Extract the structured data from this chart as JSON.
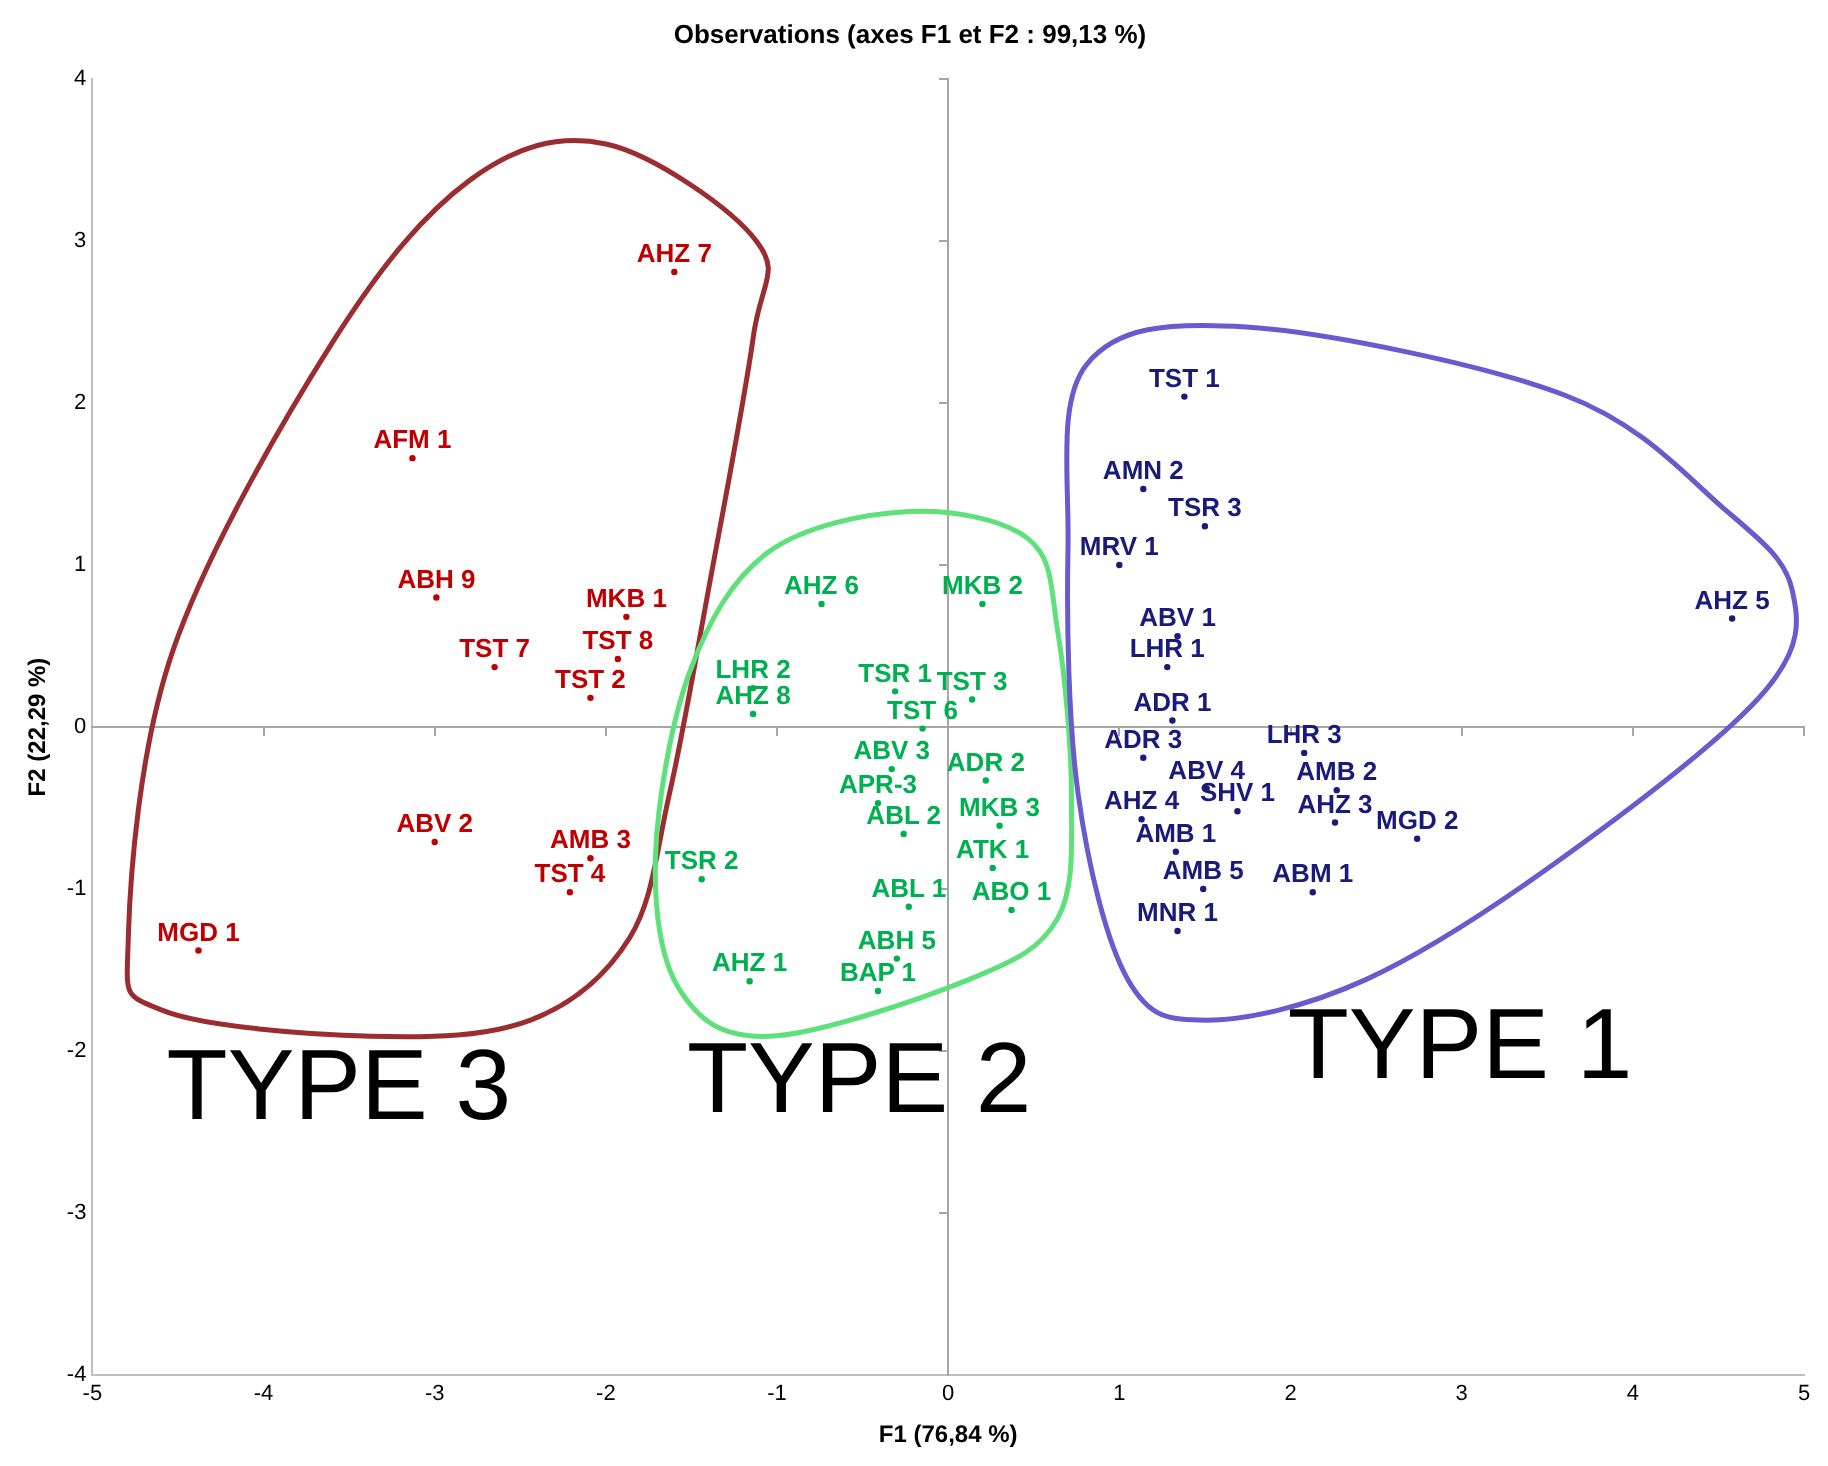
{
  "chart_data": {
    "type": "scatter",
    "title": "Observations (axes F1 et F2 : 99,13 %)",
    "xlabel": "F1 (76,84 %)",
    "ylabel": "F2 (22,29 %)",
    "xlim": [
      -5,
      5
    ],
    "ylim": [
      -4,
      4
    ],
    "xticks": [
      -5,
      -4,
      -3,
      -2,
      -1,
      0,
      1,
      2,
      3,
      4,
      5
    ],
    "yticks": [
      -4,
      -3,
      -2,
      -1,
      0,
      1,
      2,
      3,
      4
    ],
    "marker": "circle",
    "series": [
      {
        "color": "#c00000",
        "x": [
          -1.6,
          -3.13,
          -2.99,
          -1.88,
          -1.93,
          -2.65,
          -2.09,
          -3.0,
          -2.09,
          -2.21,
          -4.38
        ],
        "values": [
          2.81,
          1.66,
          0.8,
          0.68,
          0.42,
          0.37,
          0.18,
          -0.71,
          -0.81,
          -1.02,
          -1.38
        ],
        "value_labels": [
          "AHZ 7",
          "AFM 1",
          "ABH 9",
          "MKB 1",
          "TST 8",
          "TST 7",
          "TST 2",
          "ABV 2",
          "AMB 3",
          "TST 4",
          "MGD 1"
        ]
      },
      {
        "color": "#00b050",
        "x": [
          -0.74,
          0.2,
          -1.14,
          -1.14,
          -0.31,
          0.14,
          -0.15,
          -0.33,
          0.22,
          -0.41,
          -0.26,
          0.3,
          -1.44,
          0.26,
          -0.23,
          0.37,
          -0.3,
          -0.41,
          -1.16
        ],
        "values": [
          0.76,
          0.76,
          0.24,
          0.08,
          0.22,
          0.17,
          -0.01,
          -0.26,
          -0.33,
          -0.47,
          -0.66,
          -0.61,
          -0.94,
          -0.87,
          -1.11,
          -1.13,
          -1.43,
          -1.63,
          -1.57
        ],
        "value_labels": [
          "AHZ 6",
          "MKB 2",
          "LHR 2",
          "AHZ 8",
          "TSR 1",
          "TST 3",
          "TST 6",
          "ABV 3",
          "ADR 2",
          "APR-3",
          "ABL 2",
          "MKB 3",
          "TSR 2",
          "ATK 1",
          "ABL 1",
          "ABO 1",
          "ABH 5",
          "BAP 1",
          "AHZ 1"
        ]
      },
      {
        "color": "#1a1a7a",
        "x": [
          1.38,
          1.14,
          1.5,
          1.0,
          1.34,
          1.28,
          1.31,
          1.14,
          2.08,
          1.51,
          2.27,
          1.13,
          1.69,
          2.26,
          2.74,
          1.33,
          1.49,
          2.13,
          1.34,
          4.58
        ],
        "values": [
          2.04,
          1.47,
          1.24,
          1.0,
          0.56,
          0.37,
          0.04,
          -0.19,
          -0.16,
          -0.38,
          -0.39,
          -0.57,
          -0.52,
          -0.59,
          -0.69,
          -0.77,
          -1.0,
          -1.02,
          -1.26,
          0.67
        ],
        "value_labels": [
          "TST 1",
          "AMN 2",
          "TSR 3",
          "MRV 1",
          "ABV 1",
          "LHR 1",
          "ADR 1",
          "ADR 3",
          "LHR 3",
          "ABV 4",
          "AMB 2",
          "AHZ 4",
          "SHV 1",
          "AHZ 3",
          "MGD 2",
          "AMB 1",
          "AMB 5",
          "ABM 1",
          "MNR 1",
          "AHZ 5"
        ]
      }
    ],
    "annotations": [
      "TYPE 3",
      "TYPE 2",
      "TYPE 1"
    ]
  }
}
